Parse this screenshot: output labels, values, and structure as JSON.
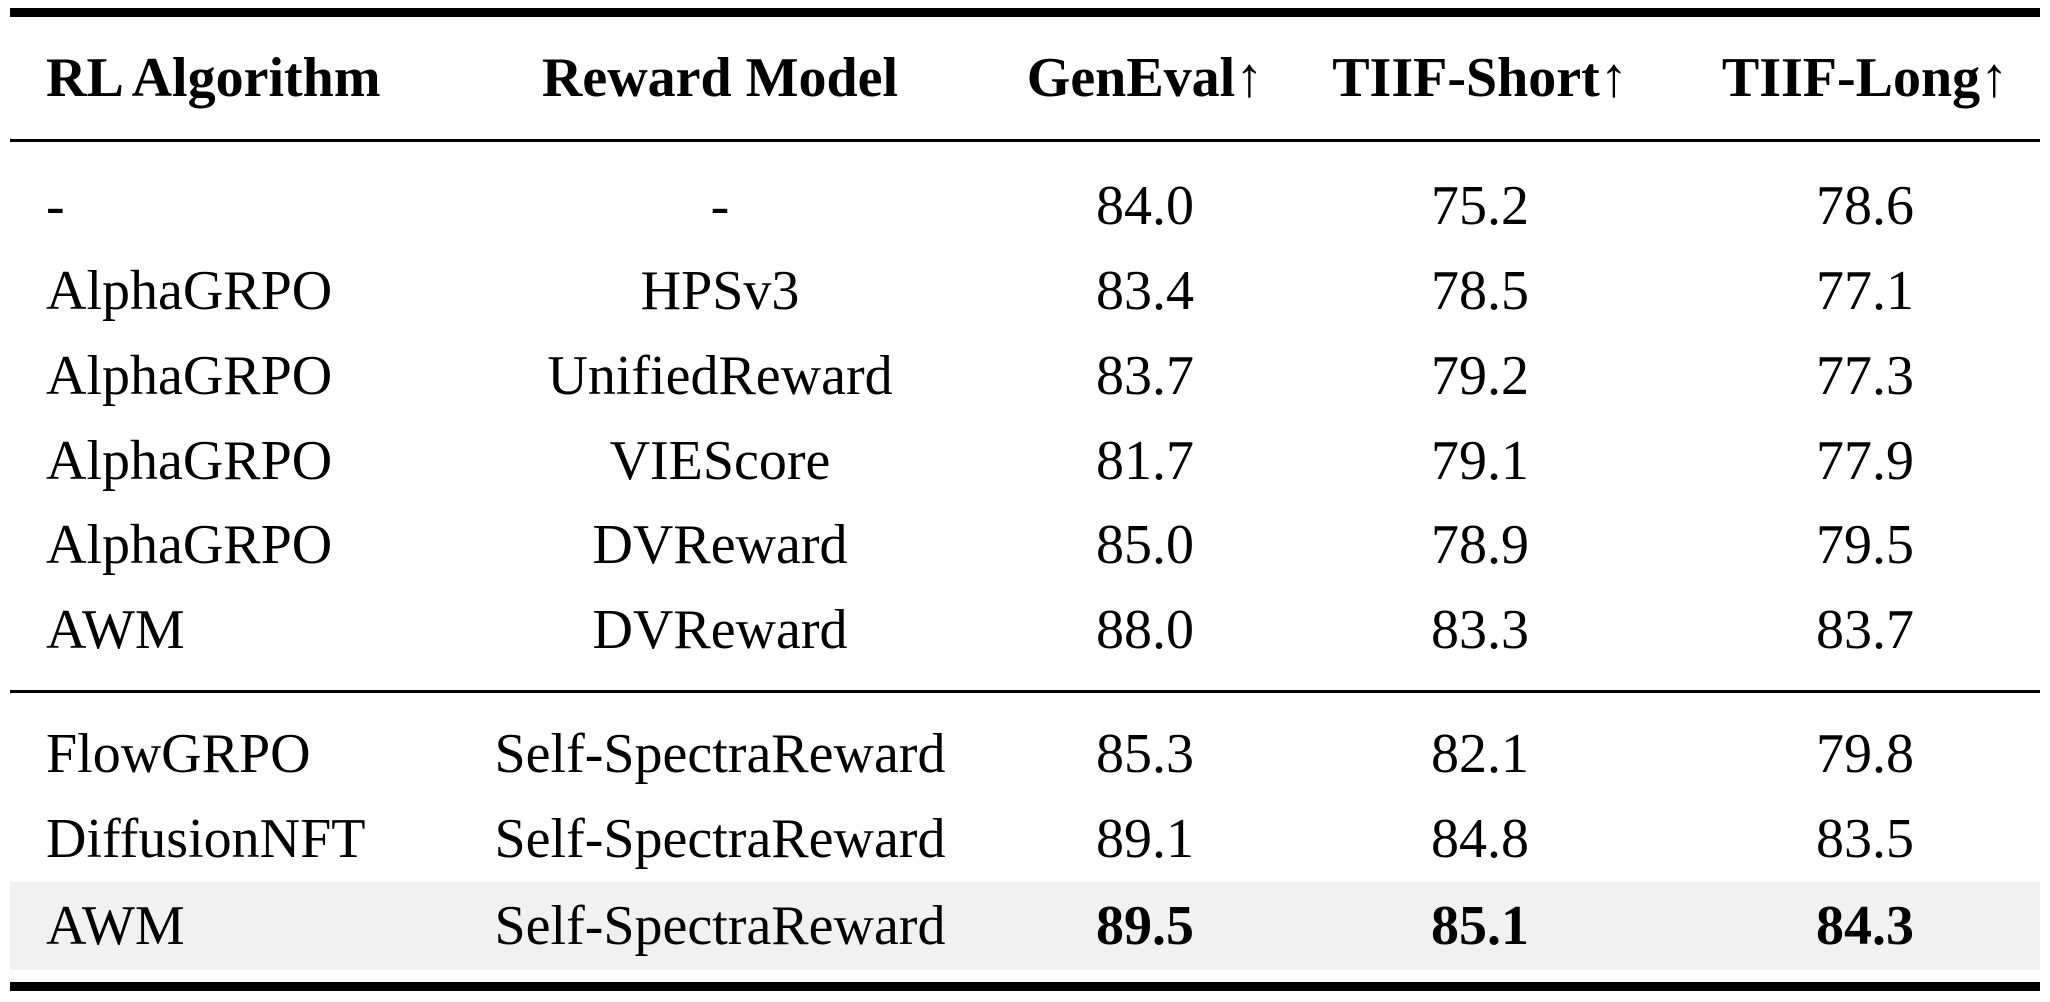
{
  "columns": [
    "RL Algorithm",
    "Reward Model",
    "GenEval↑",
    "TIIF-Short↑",
    "TIIF-Long↑"
  ],
  "rows_group1": [
    {
      "alg": "-",
      "rm": "-",
      "geneval": "84.0",
      "tiif_short": "75.2",
      "tiif_long": "78.6"
    },
    {
      "alg": "AlphaGRPO",
      "rm": "HPSv3",
      "geneval": "83.4",
      "tiif_short": "78.5",
      "tiif_long": "77.1"
    },
    {
      "alg": "AlphaGRPO",
      "rm": "UnifiedReward",
      "geneval": "83.7",
      "tiif_short": "79.2",
      "tiif_long": "77.3"
    },
    {
      "alg": "AlphaGRPO",
      "rm": "VIEScore",
      "geneval": "81.7",
      "tiif_short": "79.1",
      "tiif_long": "77.9"
    },
    {
      "alg": "AlphaGRPO",
      "rm": "DVReward",
      "geneval": "85.0",
      "tiif_short": "78.9",
      "tiif_long": "79.5"
    },
    {
      "alg": "AWM",
      "rm": "DVReward",
      "geneval": "88.0",
      "tiif_short": "83.3",
      "tiif_long": "83.7"
    }
  ],
  "rows_group2": [
    {
      "alg": "FlowGRPO",
      "rm": "Self-SpectraReward",
      "geneval": "85.3",
      "tiif_short": "82.1",
      "tiif_long": "79.8"
    },
    {
      "alg": "DiffusionNFT",
      "rm": "Self-SpectraReward",
      "geneval": "89.1",
      "tiif_short": "84.8",
      "tiif_long": "83.5"
    },
    {
      "alg": "AWM",
      "rm": "Self-SpectraReward",
      "geneval": "89.5",
      "tiif_short": "85.1",
      "tiif_long": "84.3"
    }
  ],
  "highlight_row_color": "#f1f1f1"
}
